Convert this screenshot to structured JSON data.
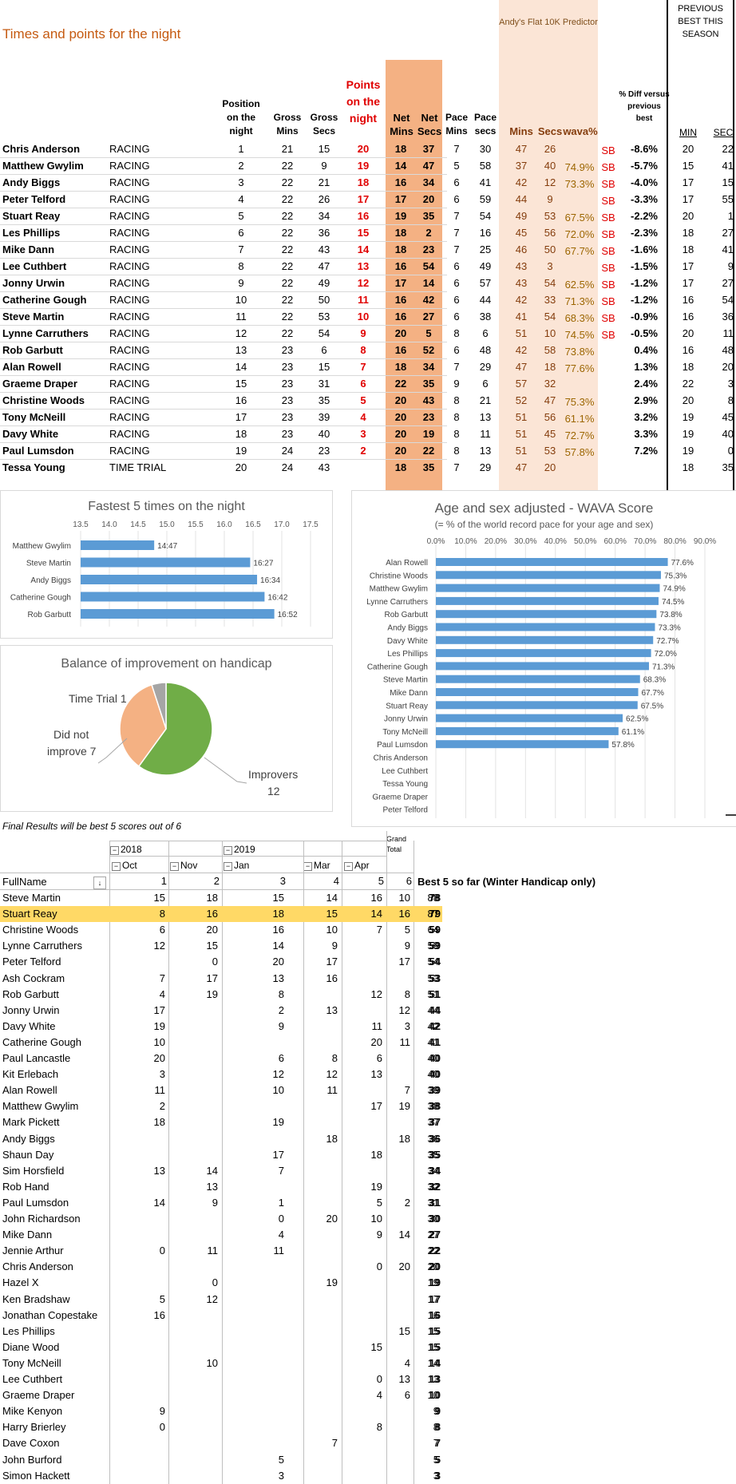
{
  "title": "Times and points for the night",
  "predictor_title": "Andy's Flat 10K Predictor",
  "prev_best_title": "PREVIOUS BEST THIS SEASON",
  "headers": {
    "position": "Position on the night",
    "gross_mins": "Gross Mins",
    "gross_secs": "Gross Secs",
    "points": "Points on the night",
    "net_mins": "Net Mins",
    "net_secs": "Net Secs",
    "pace_mins": "Pace Mins",
    "pace_secs": "Pace secs",
    "pred_mins": "Mins",
    "pred_secs": "Secs",
    "wava": "wava%",
    "pct_diff": "% Diff versus previous best",
    "prev_min": "MIN",
    "prev_sec": "SEC"
  },
  "results": [
    [
      "Chris Anderson",
      "RACING",
      "1",
      "21",
      "15",
      "20",
      "18",
      "37",
      "7",
      "30",
      "47",
      "26",
      "",
      "SB",
      "-8.6%",
      "20",
      "22"
    ],
    [
      "Matthew Gwylim",
      "RACING",
      "2",
      "22",
      "9",
      "19",
      "14",
      "47",
      "5",
      "58",
      "37",
      "40",
      "74.9%",
      "SB",
      "-5.7%",
      "15",
      "41"
    ],
    [
      "Andy Biggs",
      "RACING",
      "3",
      "22",
      "21",
      "18",
      "16",
      "34",
      "6",
      "41",
      "42",
      "12",
      "73.3%",
      "SB",
      "-4.0%",
      "17",
      "15"
    ],
    [
      "Peter Telford",
      "RACING",
      "4",
      "22",
      "26",
      "17",
      "17",
      "20",
      "6",
      "59",
      "44",
      "9",
      "",
      "SB",
      "-3.3%",
      "17",
      "55"
    ],
    [
      "Stuart Reay",
      "RACING",
      "5",
      "22",
      "34",
      "16",
      "19",
      "35",
      "7",
      "54",
      "49",
      "53",
      "67.5%",
      "SB",
      "-2.2%",
      "20",
      "1"
    ],
    [
      "Les Phillips",
      "RACING",
      "6",
      "22",
      "36",
      "15",
      "18",
      "2",
      "7",
      "16",
      "45",
      "56",
      "72.0%",
      "SB",
      "-2.3%",
      "18",
      "27"
    ],
    [
      "Mike Dann",
      "RACING",
      "7",
      "22",
      "43",
      "14",
      "18",
      "23",
      "7",
      "25",
      "46",
      "50",
      "67.7%",
      "SB",
      "-1.6%",
      "18",
      "41"
    ],
    [
      "Lee Cuthbert",
      "RACING",
      "8",
      "22",
      "47",
      "13",
      "16",
      "54",
      "6",
      "49",
      "43",
      "3",
      "",
      "SB",
      "-1.5%",
      "17",
      "9"
    ],
    [
      "Jonny Urwin",
      "RACING",
      "9",
      "22",
      "49",
      "12",
      "17",
      "14",
      "6",
      "57",
      "43",
      "54",
      "62.5%",
      "SB",
      "-1.2%",
      "17",
      "27"
    ],
    [
      "Catherine Gough",
      "RACING",
      "10",
      "22",
      "50",
      "11",
      "16",
      "42",
      "6",
      "44",
      "42",
      "33",
      "71.3%",
      "SB",
      "-1.2%",
      "16",
      "54"
    ],
    [
      "Steve Martin",
      "RACING",
      "11",
      "22",
      "53",
      "10",
      "16",
      "27",
      "6",
      "38",
      "41",
      "54",
      "68.3%",
      "SB",
      "-0.9%",
      "16",
      "36"
    ],
    [
      "Lynne Carruthers",
      "RACING",
      "12",
      "22",
      "54",
      "9",
      "20",
      "5",
      "8",
      "6",
      "51",
      "10",
      "74.5%",
      "SB",
      "-0.5%",
      "20",
      "11"
    ],
    [
      "Rob Garbutt",
      "RACING",
      "13",
      "23",
      "6",
      "8",
      "16",
      "52",
      "6",
      "48",
      "42",
      "58",
      "73.8%",
      "",
      "0.4%",
      "16",
      "48"
    ],
    [
      "Alan Rowell",
      "RACING",
      "14",
      "23",
      "15",
      "7",
      "18",
      "34",
      "7",
      "29",
      "47",
      "18",
      "77.6%",
      "",
      "1.3%",
      "18",
      "20"
    ],
    [
      "Graeme Draper",
      "RACING",
      "15",
      "23",
      "31",
      "6",
      "22",
      "35",
      "9",
      "6",
      "57",
      "32",
      "",
      "",
      "2.4%",
      "22",
      "3"
    ],
    [
      "Christine Woods",
      "RACING",
      "16",
      "23",
      "35",
      "5",
      "20",
      "43",
      "8",
      "21",
      "52",
      "47",
      "75.3%",
      "",
      "2.9%",
      "20",
      "8"
    ],
    [
      "Tony McNeill",
      "RACING",
      "17",
      "23",
      "39",
      "4",
      "20",
      "23",
      "8",
      "13",
      "51",
      "56",
      "61.1%",
      "",
      "3.2%",
      "19",
      "45"
    ],
    [
      "Davy White",
      "RACING",
      "18",
      "23",
      "40",
      "3",
      "20",
      "19",
      "8",
      "11",
      "51",
      "45",
      "72.7%",
      "",
      "3.3%",
      "19",
      "40"
    ],
    [
      "Paul Lumsdon",
      "RACING",
      "19",
      "24",
      "23",
      "2",
      "20",
      "22",
      "8",
      "13",
      "51",
      "53",
      "57.8%",
      "",
      "7.2%",
      "19",
      "0"
    ],
    [
      "Tessa Young",
      "TIME TRIAL",
      "20",
      "24",
      "43",
      "",
      "18",
      "35",
      "7",
      "29",
      "47",
      "20",
      "",
      "",
      "",
      "18",
      "35"
    ]
  ],
  "fastest": {
    "title": "Fastest 5 times on the night",
    "axis_ticks": [
      "13.5",
      "14.0",
      "14.5",
      "15.0",
      "15.5",
      "16.0",
      "16.5",
      "17.0",
      "17.5"
    ],
    "bar_color": "#5b9bd5"
  },
  "wava_chart": {
    "title": "Age and sex adjusted - WAVA Score",
    "subtitle": "(= % of the world record pace for your age and sex)",
    "axis_ticks": [
      "0.0%",
      "10.0%",
      "20.0%",
      "30.0%",
      "40.0%",
      "50.0%",
      "60.0%",
      "70.0%",
      "80.0%",
      "90.0%"
    ],
    "bar_color": "#5b9bd5"
  },
  "pie": {
    "title": "Balance of improvement on handicap",
    "labels": [
      "Improvers",
      "12",
      "Did not",
      "improve 7",
      "Time Trial 1"
    ]
  },
  "chart_data": [
    {
      "type": "bar",
      "title": "Fastest 5 times on the night",
      "categories": [
        "Matthew Gwylim",
        "Steve Martin",
        "Andy Biggs",
        "Catherine Gough",
        "Rob Garbutt"
      ],
      "values": [
        14.78,
        16.45,
        16.57,
        16.7,
        16.87
      ],
      "data_labels": [
        "14:47",
        "16:27",
        "16:34",
        "16:42",
        "16:52"
      ],
      "xlim": [
        13.5,
        17.5
      ]
    },
    {
      "type": "bar",
      "title": "Age and sex adjusted - WAVA Score",
      "categories": [
        "Alan Rowell",
        "Christine Woods",
        "Matthew Gwylim",
        "Lynne Carruthers",
        "Rob Garbutt",
        "Andy Biggs",
        "Davy White",
        "Les Phillips",
        "Catherine Gough",
        "Steve Martin",
        "Mike Dann",
        "Stuart Reay",
        "Jonny Urwin",
        "Tony McNeill",
        "Paul Lumsdon",
        "Chris Anderson",
        "Lee Cuthbert",
        "Tessa Young",
        "Graeme Draper",
        "Peter Telford"
      ],
      "values": [
        77.6,
        75.3,
        74.9,
        74.5,
        73.8,
        73.3,
        72.7,
        72.0,
        71.3,
        68.3,
        67.7,
        67.5,
        62.5,
        61.1,
        57.8,
        null,
        null,
        null,
        null,
        null
      ],
      "data_labels": [
        "77.6%",
        "75.3%",
        "74.9%",
        "74.5%",
        "73.8%",
        "73.3%",
        "72.7%",
        "72.0%",
        "71.3%",
        "68.3%",
        "67.7%",
        "67.5%",
        "62.5%",
        "61.1%",
        "57.8%",
        "",
        "",
        "",
        "",
        ""
      ],
      "xlim": [
        0,
        90
      ]
    },
    {
      "type": "pie",
      "title": "Balance of improvement on handicap",
      "categories": [
        "Improvers",
        "Did not improve",
        "Time Trial"
      ],
      "values": [
        12,
        7,
        1
      ],
      "colors": [
        "#70ad47",
        "#f4b183",
        "#a5a5a5"
      ]
    }
  ],
  "pivot": {
    "note": "Final Results will be best 5 scores out of 6",
    "grand_total": "Grand Total",
    "year_2018": "2018",
    "year_2019": "2019",
    "months": [
      "Oct",
      "Nov",
      "Jan",
      "Mar",
      "Apr"
    ],
    "fullname": "FullName",
    "col_nums": [
      "1",
      "2",
      "3",
      "4",
      "5",
      "6"
    ],
    "best5_header": "Best 5 so far (Winter Handicap only)",
    "highlight_color": "#ffd966",
    "rows": [
      [
        "Steve Martin",
        "15",
        "18",
        "15",
        "14",
        "16",
        "10",
        "88",
        "78"
      ],
      [
        "Stuart Reay",
        "8",
        "16",
        "18",
        "15",
        "14",
        "16",
        "87",
        "79"
      ],
      [
        "Christine Woods",
        "6",
        "20",
        "16",
        "10",
        "7",
        "5",
        "64",
        "59"
      ],
      [
        "Lynne Carruthers",
        "12",
        "15",
        "14",
        "9",
        "",
        "9",
        "59",
        "59"
      ],
      [
        "Peter Telford",
        "",
        "0",
        "20",
        "17",
        "",
        "17",
        "54",
        "54"
      ],
      [
        "Ash Cockram",
        "7",
        "17",
        "13",
        "16",
        "",
        "",
        "53",
        "53"
      ],
      [
        "Rob Garbutt",
        "4",
        "19",
        "8",
        "",
        "12",
        "8",
        "51",
        "51"
      ],
      [
        "Jonny Urwin",
        "17",
        "",
        "2",
        "13",
        "",
        "12",
        "44",
        "44"
      ],
      [
        "Davy White",
        "19",
        "",
        "9",
        "",
        "11",
        "3",
        "42",
        "42"
      ],
      [
        "Catherine Gough",
        "10",
        "",
        "",
        "",
        "20",
        "11",
        "41",
        "41"
      ],
      [
        "Paul Lancastle",
        "20",
        "",
        "6",
        "8",
        "6",
        "",
        "40",
        "40"
      ],
      [
        "Kit Erlebach",
        "3",
        "",
        "12",
        "12",
        "13",
        "",
        "40",
        "40"
      ],
      [
        "Alan Rowell",
        "11",
        "",
        "10",
        "11",
        "",
        "7",
        "39",
        "39"
      ],
      [
        "Matthew Gwylim",
        "2",
        "",
        "",
        "",
        "17",
        "19",
        "38",
        "38"
      ],
      [
        "Mark Pickett",
        "18",
        "",
        "19",
        "",
        "",
        "",
        "37",
        "37"
      ],
      [
        "Andy Biggs",
        "",
        "",
        "",
        "18",
        "",
        "18",
        "36",
        "36"
      ],
      [
        "Shaun Day",
        "",
        "",
        "17",
        "",
        "18",
        "",
        "35",
        "35"
      ],
      [
        "Sim Horsfield",
        "13",
        "14",
        "7",
        "",
        "",
        "",
        "34",
        "34"
      ],
      [
        "Rob Hand",
        "",
        "13",
        "",
        "",
        "19",
        "",
        "32",
        "32"
      ],
      [
        "Paul Lumsdon",
        "14",
        "9",
        "1",
        "",
        "5",
        "2",
        "31",
        "31"
      ],
      [
        "John Richardson",
        "",
        "",
        "0",
        "20",
        "10",
        "",
        "30",
        "30"
      ],
      [
        "Mike Dann",
        "",
        "",
        "4",
        "",
        "9",
        "14",
        "27",
        "27"
      ],
      [
        "Jennie Arthur",
        "0",
        "11",
        "11",
        "",
        "",
        "",
        "22",
        "22"
      ],
      [
        "Chris Anderson",
        "",
        "",
        "",
        "",
        "0",
        "20",
        "20",
        "20"
      ],
      [
        "Hazel X",
        "",
        "0",
        "",
        "19",
        "",
        "",
        "19",
        "19"
      ],
      [
        "Ken Bradshaw",
        "5",
        "12",
        "",
        "",
        "",
        "",
        "17",
        "17"
      ],
      [
        "Jonathan Copestake",
        "16",
        "",
        "",
        "",
        "",
        "",
        "16",
        "16"
      ],
      [
        "Les Phillips",
        "",
        "",
        "",
        "",
        "",
        "15",
        "15",
        "15"
      ],
      [
        "Diane Wood",
        "",
        "",
        "",
        "",
        "15",
        "",
        "15",
        "15"
      ],
      [
        "Tony McNeill",
        "",
        "10",
        "",
        "",
        "",
        "4",
        "14",
        "14"
      ],
      [
        "Lee Cuthbert",
        "",
        "",
        "",
        "",
        "0",
        "13",
        "13",
        "13"
      ],
      [
        "Graeme Draper",
        "",
        "",
        "",
        "",
        "4",
        "6",
        "10",
        "10"
      ],
      [
        "Mike Kenyon",
        "9",
        "",
        "",
        "",
        "",
        "",
        "9",
        "9"
      ],
      [
        "Harry Brierley",
        "0",
        "",
        "",
        "",
        "8",
        "",
        "8",
        "8"
      ],
      [
        "Dave Coxon",
        "",
        "",
        "",
        "7",
        "",
        "",
        "7",
        "7"
      ],
      [
        "John Burford",
        "",
        "",
        "5",
        "",
        "",
        "",
        "5",
        "5"
      ],
      [
        "Simon Hackett",
        "",
        "",
        "3",
        "",
        "",
        "",
        "3",
        "3"
      ]
    ]
  }
}
